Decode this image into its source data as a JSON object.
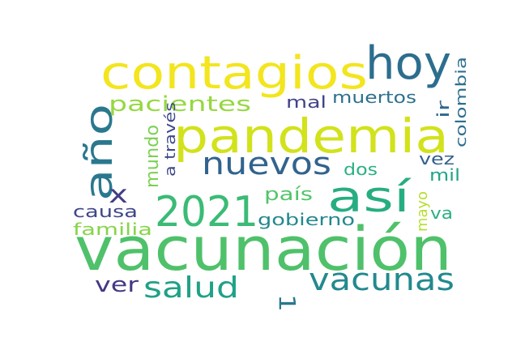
{
  "words": [
    {
      "text": "vacunación",
      "color": "#4fc16a"
    },
    {
      "text": "pandemia",
      "color": "#d2e21b"
    },
    {
      "text": "contagios",
      "color": "#f3e51e"
    },
    {
      "text": "hoy",
      "color": "#2c6e8e"
    },
    {
      "text": "año",
      "color": "#2a788e"
    },
    {
      "text": "así",
      "color": "#27ad81"
    },
    {
      "text": "2021",
      "color": "#3bbb75"
    },
    {
      "text": "nuevos",
      "color": "#31638e"
    },
    {
      "text": "vacunas",
      "color": "#23898e"
    },
    {
      "text": "salud",
      "color": "#1fa187"
    },
    {
      "text": "pacientes",
      "color": "#95d840"
    },
    {
      "text": "x",
      "color": "#433e85"
    },
    {
      "text": "1",
      "color": "#2a788e"
    },
    {
      "text": "ver",
      "color": "#453781"
    },
    {
      "text": "mundo",
      "color": "#7ad151"
    },
    {
      "text": "a través",
      "color": "#3e4a89"
    },
    {
      "text": "muertos",
      "color": "#2d708e"
    },
    {
      "text": "mal",
      "color": "#404387"
    },
    {
      "text": "ir",
      "color": "#31668e"
    },
    {
      "text": "colombia",
      "color": "#2d708e"
    },
    {
      "text": "país",
      "color": "#52c569"
    },
    {
      "text": "dos",
      "color": "#2bb07f"
    },
    {
      "text": "vez",
      "color": "#34608d"
    },
    {
      "text": "mil",
      "color": "#20a386"
    },
    {
      "text": "causa",
      "color": "#3f4788"
    },
    {
      "text": "familia",
      "color": "#86d549"
    },
    {
      "text": "gobierno",
      "color": "#23888e"
    },
    {
      "text": "mayo",
      "color": "#b5de2b"
    },
    {
      "text": "va",
      "color": "#2ab07f"
    }
  ]
}
